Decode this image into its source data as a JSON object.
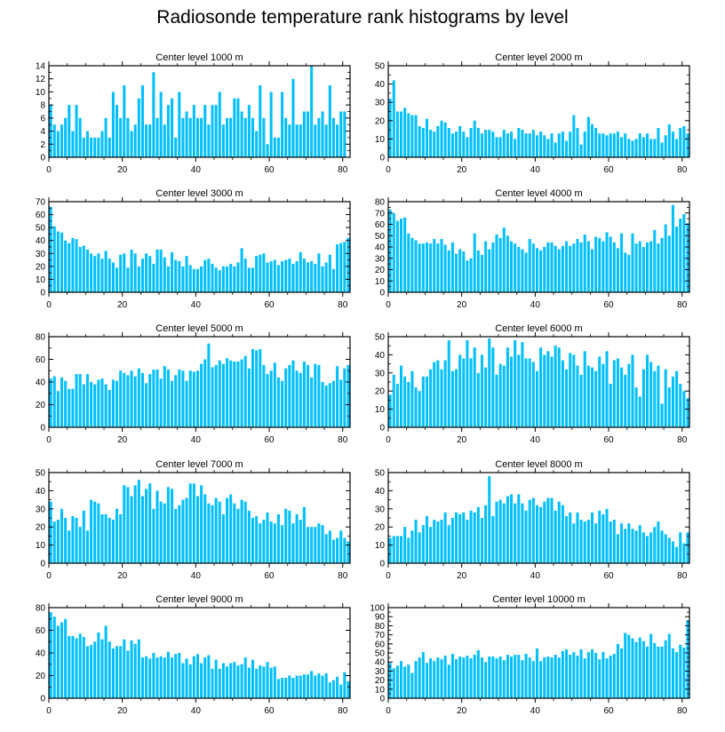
{
  "title": "Radiosonde temperature rank histograms by level",
  "bar_color": "#00bfff",
  "chart_data": [
    {
      "type": "bar",
      "title": "Center level 1000 m",
      "xlabel": "",
      "ylabel": "",
      "xlim": [
        0,
        82
      ],
      "ylim": [
        0,
        14
      ],
      "xticks": [
        0,
        20,
        40,
        60,
        80
      ],
      "yticks": [
        0,
        2,
        4,
        6,
        8,
        10,
        12,
        14
      ],
      "values": [
        8,
        5,
        4,
        5,
        6,
        8,
        4,
        8,
        6,
        3,
        4,
        3,
        3,
        3,
        4,
        6,
        3,
        10,
        8,
        6,
        11,
        6,
        4,
        5,
        9,
        11,
        5,
        5,
        13,
        6,
        10,
        5,
        8,
        9,
        3,
        10,
        6,
        7,
        6,
        8,
        6,
        6,
        8,
        5,
        8,
        8,
        10,
        5,
        6,
        6,
        9,
        9,
        7,
        6,
        8,
        6,
        4,
        11,
        6,
        2,
        10,
        3,
        3,
        10,
        6,
        5,
        12,
        5,
        5,
        7,
        7,
        14,
        5,
        6,
        7,
        5,
        11,
        6,
        5,
        7,
        7
      ]
    },
    {
      "type": "bar",
      "title": "Center level 2000 m",
      "xlabel": "",
      "ylabel": "",
      "xlim": [
        0,
        82
      ],
      "ylim": [
        0,
        50
      ],
      "xticks": [
        0,
        20,
        40,
        60,
        80
      ],
      "yticks": [
        0,
        10,
        20,
        30,
        40,
        50
      ],
      "values": [
        32,
        42,
        25,
        25,
        27,
        24,
        23,
        23,
        17,
        16,
        21,
        15,
        14,
        17,
        20,
        19,
        16,
        13,
        14,
        17,
        14,
        11,
        16,
        20,
        16,
        13,
        15,
        15,
        14,
        11,
        11,
        15,
        13,
        14,
        10,
        16,
        15,
        13,
        13,
        15,
        12,
        14,
        12,
        10,
        13,
        8,
        13,
        14,
        9,
        14,
        23,
        16,
        7,
        14,
        22,
        18,
        16,
        13,
        13,
        12,
        13,
        13,
        14,
        11,
        13,
        10,
        9,
        10,
        13,
        11,
        13,
        10,
        10,
        16,
        8,
        12,
        18,
        14,
        10,
        16,
        17,
        13
      ]
    },
    {
      "type": "bar",
      "title": "Center level 3000 m",
      "xlabel": "",
      "ylabel": "",
      "xlim": [
        0,
        82
      ],
      "ylim": [
        0,
        70
      ],
      "xticks": [
        0,
        20,
        40,
        60,
        80
      ],
      "yticks": [
        0,
        10,
        20,
        30,
        40,
        50,
        60,
        70
      ],
      "values": [
        66,
        51,
        47,
        46,
        40,
        38,
        42,
        41,
        35,
        36,
        33,
        30,
        28,
        30,
        26,
        32,
        26,
        23,
        19,
        29,
        30,
        19,
        33,
        30,
        20,
        26,
        30,
        28,
        22,
        33,
        33,
        27,
        20,
        31,
        25,
        24,
        20,
        28,
        21,
        18,
        18,
        20,
        25,
        26,
        22,
        19,
        17,
        20,
        20,
        22,
        20,
        23,
        34,
        26,
        19,
        19,
        28,
        29,
        30,
        23,
        24,
        25,
        21,
        24,
        25,
        26,
        22,
        24,
        31,
        26,
        23,
        24,
        22,
        30,
        20,
        23,
        29,
        18,
        37,
        38,
        39,
        42
      ]
    },
    {
      "type": "bar",
      "title": "Center level 4000 m",
      "xlabel": "",
      "ylabel": "",
      "xlim": [
        0,
        82
      ],
      "ylim": [
        0,
        80
      ],
      "xticks": [
        0,
        20,
        40,
        60,
        80
      ],
      "yticks": [
        0,
        10,
        20,
        30,
        40,
        50,
        60,
        70,
        80
      ],
      "values": [
        73,
        70,
        63,
        65,
        66,
        52,
        48,
        46,
        43,
        43,
        44,
        43,
        47,
        43,
        47,
        42,
        37,
        44,
        34,
        38,
        36,
        28,
        30,
        52,
        37,
        33,
        45,
        38,
        44,
        51,
        48,
        57,
        50,
        45,
        43,
        40,
        38,
        35,
        47,
        43,
        39,
        37,
        40,
        44,
        44,
        41,
        38,
        41,
        45,
        41,
        43,
        47,
        44,
        51,
        45,
        38,
        49,
        48,
        45,
        53,
        49,
        44,
        39,
        52,
        35,
        33,
        52,
        43,
        45,
        40,
        44,
        45,
        55,
        43,
        48,
        60,
        50,
        77,
        58,
        65,
        69,
        61
      ]
    },
    {
      "type": "bar",
      "title": "Center level 5000 m",
      "xlabel": "",
      "ylabel": "",
      "xlim": [
        0,
        82
      ],
      "ylim": [
        0,
        80
      ],
      "xticks": [
        0,
        20,
        40,
        60,
        80
      ],
      "yticks": [
        0,
        20,
        40,
        60,
        80
      ],
      "values": [
        43,
        45,
        32,
        44,
        41,
        34,
        34,
        47,
        47,
        38,
        47,
        40,
        38,
        42,
        43,
        38,
        33,
        42,
        41,
        50,
        48,
        46,
        50,
        45,
        52,
        48,
        39,
        47,
        51,
        51,
        43,
        54,
        51,
        41,
        46,
        51,
        50,
        41,
        50,
        49,
        50,
        56,
        60,
        74,
        53,
        55,
        59,
        56,
        61,
        59,
        58,
        58,
        60,
        63,
        52,
        69,
        68,
        69,
        55,
        47,
        50,
        57,
        44,
        41,
        52,
        55,
        59,
        50,
        48,
        58,
        55,
        44,
        56,
        55,
        40,
        37,
        39,
        41,
        54,
        42,
        52,
        55
      ]
    },
    {
      "type": "bar",
      "title": "Center level 6000 m",
      "xlabel": "",
      "ylabel": "",
      "xlim": [
        0,
        82
      ],
      "ylim": [
        0,
        50
      ],
      "xticks": [
        0,
        20,
        40,
        60,
        80
      ],
      "yticks": [
        0,
        10,
        20,
        30,
        40,
        50
      ],
      "values": [
        18,
        29,
        24,
        34,
        28,
        25,
        31,
        22,
        20,
        28,
        28,
        32,
        36,
        37,
        32,
        37,
        48,
        31,
        32,
        40,
        38,
        48,
        38,
        44,
        30,
        40,
        33,
        49,
        44,
        29,
        35,
        34,
        44,
        39,
        48,
        40,
        47,
        38,
        38,
        36,
        31,
        44,
        40,
        42,
        39,
        45,
        44,
        37,
        32,
        41,
        40,
        34,
        29,
        42,
        34,
        33,
        31,
        39,
        35,
        42,
        24,
        37,
        38,
        33,
        29,
        35,
        40,
        22,
        17,
        32,
        40,
        36,
        31,
        34,
        13,
        32,
        22,
        28,
        31,
        24,
        20,
        16
      ]
    },
    {
      "type": "bar",
      "title": "Center level 7000 m",
      "xlabel": "",
      "ylabel": "",
      "xlim": [
        0,
        82
      ],
      "ylim": [
        0,
        50
      ],
      "xticks": [
        0,
        20,
        40,
        60,
        80
      ],
      "yticks": [
        0,
        10,
        20,
        30,
        40,
        50
      ],
      "values": [
        34,
        23,
        24,
        30,
        25,
        18,
        26,
        25,
        20,
        29,
        18,
        35,
        34,
        33,
        27,
        27,
        25,
        24,
        30,
        27,
        43,
        42,
        37,
        43,
        46,
        37,
        41,
        44,
        30,
        40,
        34,
        33,
        42,
        41,
        30,
        32,
        35,
        36,
        44,
        44,
        37,
        43,
        38,
        33,
        32,
        36,
        34,
        27,
        36,
        38,
        33,
        30,
        35,
        34,
        29,
        25,
        26,
        22,
        24,
        28,
        23,
        22,
        27,
        21,
        30,
        29,
        22,
        27,
        24,
        31,
        20,
        20,
        20,
        22,
        21,
        16,
        18,
        13,
        14,
        18,
        14,
        12
      ]
    },
    {
      "type": "bar",
      "title": "Center level 8000 m",
      "xlabel": "",
      "ylabel": "",
      "xlim": [
        0,
        82
      ],
      "ylim": [
        0,
        50
      ],
      "xticks": [
        0,
        20,
        40,
        60,
        80
      ],
      "yticks": [
        0,
        10,
        20,
        30,
        40,
        50
      ],
      "values": [
        14,
        15,
        15,
        15,
        20,
        14,
        18,
        24,
        17,
        21,
        26,
        20,
        24,
        23,
        24,
        28,
        21,
        25,
        28,
        27,
        28,
        24,
        29,
        28,
        31,
        25,
        32,
        48,
        26,
        34,
        35,
        33,
        37,
        38,
        33,
        38,
        33,
        29,
        35,
        36,
        32,
        31,
        34,
        36,
        36,
        29,
        34,
        32,
        26,
        28,
        22,
        28,
        24,
        23,
        24,
        28,
        22,
        29,
        27,
        30,
        23,
        24,
        16,
        22,
        19,
        22,
        19,
        18,
        21,
        17,
        15,
        17,
        20,
        23,
        18,
        16,
        14,
        12,
        9,
        17,
        11,
        17
      ]
    },
    {
      "type": "bar",
      "title": "Center level 9000 m",
      "xlabel": "",
      "ylabel": "",
      "xlim": [
        0,
        82
      ],
      "ylim": [
        0,
        80
      ],
      "xticks": [
        0,
        20,
        40,
        60,
        80
      ],
      "yticks": [
        0,
        20,
        40,
        60,
        80
      ],
      "values": [
        76,
        72,
        64,
        67,
        70,
        55,
        55,
        53,
        57,
        54,
        46,
        47,
        50,
        58,
        52,
        64,
        50,
        44,
        46,
        46,
        52,
        42,
        51,
        48,
        52,
        36,
        37,
        35,
        40,
        36,
        37,
        36,
        41,
        36,
        39,
        40,
        31,
        35,
        30,
        37,
        39,
        31,
        36,
        38,
        26,
        34,
        26,
        31,
        28,
        31,
        32,
        29,
        30,
        36,
        27,
        34,
        26,
        29,
        28,
        32,
        27,
        28,
        17,
        18,
        18,
        20,
        18,
        20,
        20,
        21,
        21,
        24,
        20,
        22,
        20,
        22,
        14,
        16,
        19,
        12,
        23,
        15
      ]
    },
    {
      "type": "bar",
      "title": "Center level 10000 m",
      "xlabel": "",
      "ylabel": "",
      "xlim": [
        0,
        82
      ],
      "ylim": [
        0,
        100
      ],
      "xticks": [
        0,
        20,
        40,
        60,
        80
      ],
      "yticks": [
        0,
        10,
        20,
        30,
        40,
        50,
        60,
        70,
        80,
        90,
        100
      ],
      "values": [
        39,
        33,
        36,
        41,
        35,
        37,
        28,
        41,
        45,
        51,
        39,
        44,
        41,
        45,
        43,
        47,
        37,
        49,
        43,
        46,
        45,
        47,
        44,
        48,
        53,
        45,
        40,
        46,
        46,
        44,
        46,
        42,
        48,
        46,
        48,
        48,
        42,
        49,
        45,
        41,
        55,
        41,
        45,
        46,
        45,
        48,
        45,
        52,
        54,
        48,
        51,
        47,
        54,
        44,
        51,
        54,
        50,
        43,
        51,
        44,
        47,
        49,
        60,
        55,
        72,
        70,
        66,
        62,
        67,
        63,
        57,
        71,
        61,
        57,
        57,
        64,
        71,
        55,
        51,
        59,
        56,
        86
      ]
    }
  ]
}
